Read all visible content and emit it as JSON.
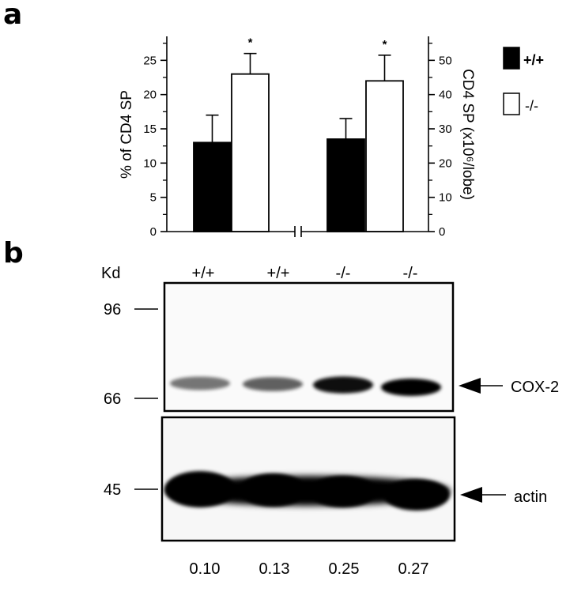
{
  "panel_a": {
    "letter": "a",
    "chart_data": {
      "type": "bar",
      "ylabel_left": "% of CD4 SP",
      "ylabel_right": "CD4 SP (x10⁶/lobe)",
      "ylim_left": [
        0,
        30
      ],
      "ylim_right": [
        0,
        60
      ],
      "yticks_left": [
        "0",
        "5",
        "10",
        "15",
        "20",
        "25"
      ],
      "yticks_right": [
        "0",
        "10",
        "20",
        "30",
        "40",
        "50"
      ],
      "groups": [
        {
          "axis": "left",
          "bars": [
            {
              "genotype": "+/+",
              "value": 13,
              "error": 4,
              "significance": ""
            },
            {
              "genotype": "-/-",
              "value": 23,
              "error": 3,
              "significance": "*"
            }
          ]
        },
        {
          "axis": "right",
          "bars": [
            {
              "genotype": "+/+",
              "value": 27,
              "error": 6,
              "significance": ""
            },
            {
              "genotype": "-/-",
              "value": 44,
              "error": 7.5,
              "significance": "*"
            }
          ]
        }
      ],
      "legend": [
        {
          "label": "+/+",
          "color": "#000000"
        },
        {
          "label": "-/-",
          "color": "#ffffff"
        }
      ],
      "legend_position": "right"
    }
  },
  "panel_b": {
    "letter": "b",
    "kd_label": "Kd",
    "lane_labels": [
      "+/+",
      "+/+",
      "-/-",
      "-/-"
    ],
    "markers": [
      "96",
      "66",
      "45"
    ],
    "band_labels": [
      "COX-2",
      "actin"
    ],
    "ratios": [
      "0.10",
      "0.13",
      "0.25",
      "0.27"
    ],
    "cox2_intensity": [
      0.1,
      0.13,
      0.25,
      0.27
    ]
  }
}
